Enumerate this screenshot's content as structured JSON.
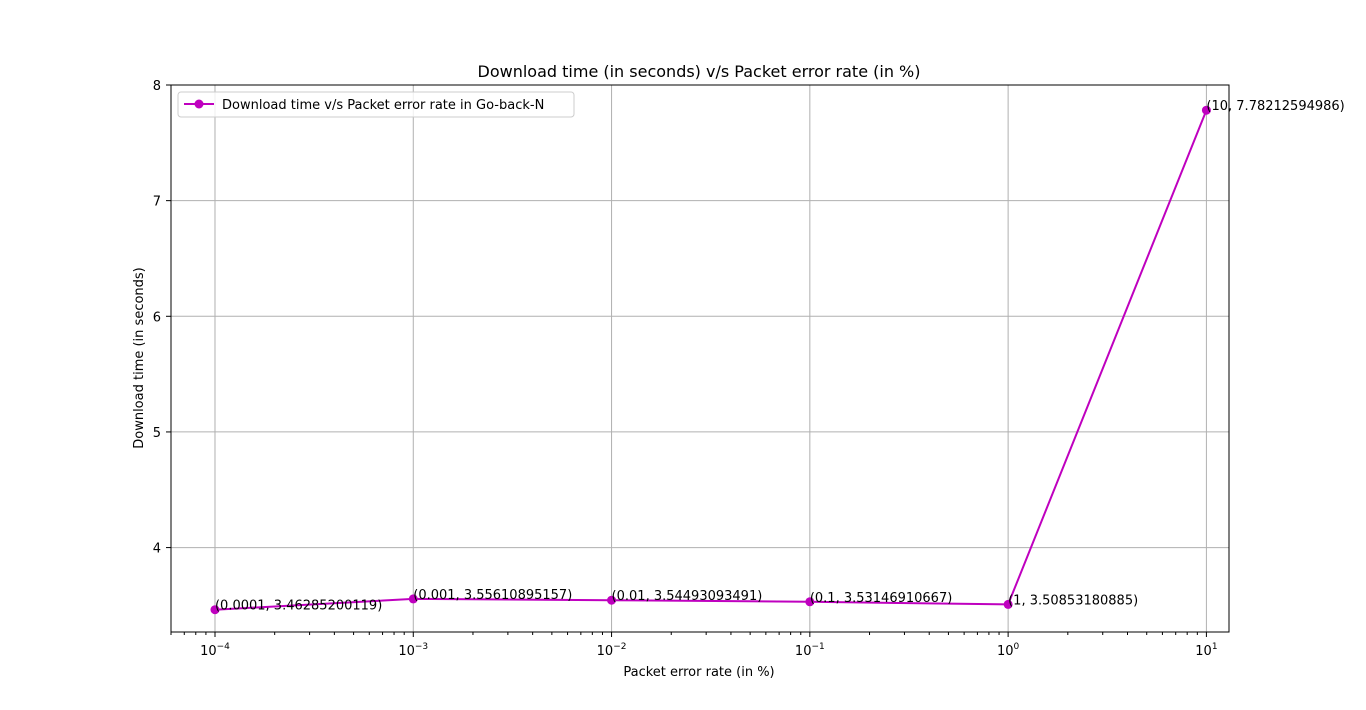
{
  "chart_data": {
    "type": "line",
    "title": "Download time (in seconds) v/s Packet error rate (in %)",
    "xlabel": "Packet error rate (in %)",
    "ylabel": "Download time (in seconds)",
    "xscale": "log",
    "xlim": [
      6e-05,
      13
    ],
    "ylim": [
      3.27,
      8
    ],
    "grid": true,
    "legend_position": "upper-left",
    "x_ticks": [
      {
        "value": 0.0001,
        "base": "10",
        "exp": "−4"
      },
      {
        "value": 0.001,
        "base": "10",
        "exp": "−3"
      },
      {
        "value": 0.01,
        "base": "10",
        "exp": "−2"
      },
      {
        "value": 0.1,
        "base": "10",
        "exp": "−1"
      },
      {
        "value": 1,
        "base": "10",
        "exp": "0"
      },
      {
        "value": 10,
        "base": "10",
        "exp": "1"
      }
    ],
    "y_ticks": [
      "4",
      "5",
      "6",
      "7",
      "8"
    ],
    "series": [
      {
        "name": "Download time v/s Packet error rate in Go-back-N",
        "color": "#bf00bf",
        "x": [
          0.0001,
          0.001,
          0.01,
          0.1,
          1,
          10
        ],
        "y": [
          3.46285200119,
          3.55610895157,
          3.54493093491,
          3.53146910667,
          3.50853180885,
          7.78212594986
        ],
        "labels": [
          "(0.0001, 3.46285200119)",
          "(0.001, 3.55610895157)",
          "(0.01, 3.54493093491)",
          "(0.1, 3.53146910667)",
          "(1, 3.50853180885)",
          "(10, 7.78212594986)"
        ]
      }
    ]
  }
}
